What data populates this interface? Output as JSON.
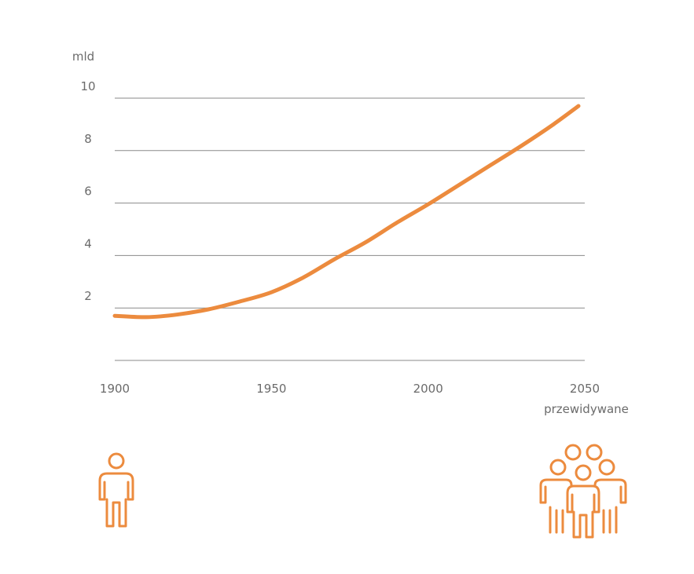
{
  "chart_data": {
    "type": "line",
    "unit_label": "mld",
    "xlim": [
      1900,
      2050
    ],
    "ylim": [
      0,
      10
    ],
    "y_ticks": [
      2,
      4,
      6,
      8,
      10
    ],
    "y_tick_labels": [
      "2",
      "4",
      "6",
      "8",
      "10"
    ],
    "x_ticks": [
      1900,
      1950,
      2000,
      2050
    ],
    "x_tick_labels": [
      "1900",
      "1950",
      "2000",
      "2050"
    ],
    "x_note": "przewidywane",
    "grid": true,
    "legend": "none",
    "series": [
      {
        "color": "#ec8b3e",
        "x": [
          1900,
          1910,
          1920,
          1930,
          1940,
          1950,
          1960,
          1970,
          1980,
          1990,
          2000,
          2010,
          2020,
          2030,
          2040,
          2048
        ],
        "y": [
          1.7,
          1.65,
          1.75,
          1.95,
          2.25,
          2.6,
          3.15,
          3.85,
          4.5,
          5.25,
          5.95,
          6.7,
          7.45,
          8.2,
          9.0,
          9.7
        ]
      }
    ]
  },
  "icons": {
    "left": "single-person-icon",
    "right": "group-of-people-icon",
    "color": "#ec8b3e"
  }
}
